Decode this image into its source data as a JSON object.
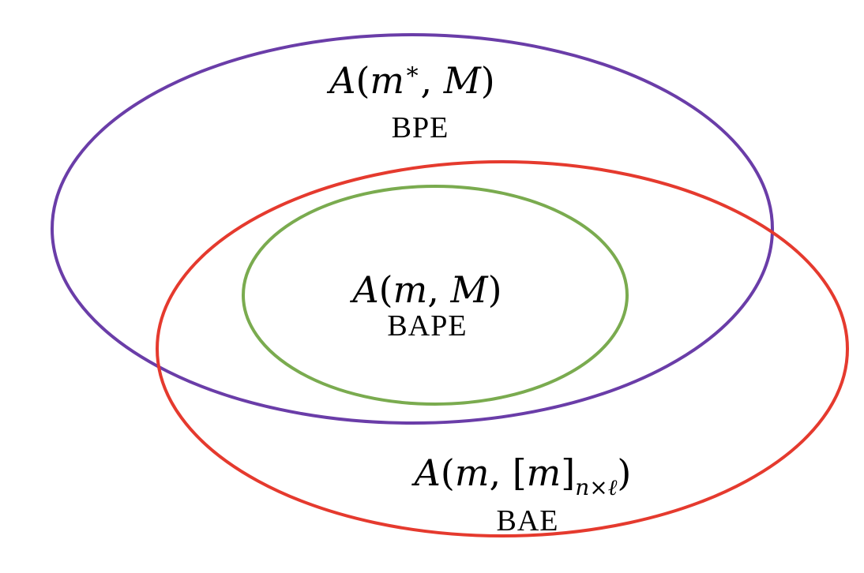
{
  "colors": {
    "bpe": "#6a3da8",
    "bae": "#e53a2e",
    "bape": "#7aab4f"
  },
  "sets": {
    "bpe": {
      "expr": {
        "fn": "A",
        "open": "(",
        "arg1": "m",
        "arg1_sup": "∗",
        "sep": ", ",
        "arg2": "M",
        "close": ")"
      },
      "caption": "BPE"
    },
    "bape": {
      "expr": {
        "fn": "A",
        "open": "(",
        "arg1": "m",
        "sep": ", ",
        "arg2": "M",
        "close": ")"
      },
      "caption": "BAPE"
    },
    "bae": {
      "expr": {
        "fn": "A",
        "open": "(",
        "arg1": "m",
        "sep": ", ",
        "bracket_open": "[",
        "bracket_arg": "m",
        "bracket_close": "]",
        "sub": "n×ℓ",
        "close": ")"
      },
      "caption": "BAE"
    }
  }
}
